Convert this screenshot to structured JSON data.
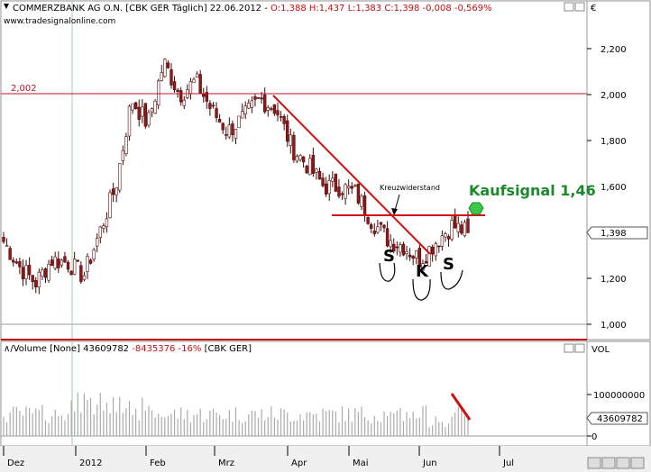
{
  "header": {
    "title_prefix": "COMMERZBANK AG O.N. [CBK GER  Täglich] 22.06.2012 - ",
    "ohlc": "O:1,388 H:1,437 L:1,383 C:1,398 -0,008 -0,569%",
    "source": "www.tradesignalonline.com",
    "currency": "€"
  },
  "volume_header": {
    "prefix": "Volume [None] 43609782 ",
    "change": "-8435376 -16%",
    "suffix": " [CBK GER]",
    "axis_label": "VOL"
  },
  "annotations": {
    "level_label": "2,002",
    "kreuzwiderstand": "Kreuzwiderstand",
    "kaufsignal": "Kaufsignal 1,46",
    "s_left": "S",
    "k": "K",
    "s_right": "S",
    "last_price": "1,398",
    "last_volume": "43609782"
  },
  "colors": {
    "background": "#ffffff",
    "candle": "#8b1a1a",
    "trendline": "#d01010",
    "level_line": "#c0102a",
    "kaufsignal_text": "#1a8a2a",
    "kaufsignal_dot": "#3cc84a",
    "header_red": "#c41010",
    "volume_bar": "#aaaaaa"
  },
  "chart_data": {
    "type": "candlestick",
    "ylim": [
      0.93,
      2.38
    ],
    "price_ticks": [
      "1,000",
      "1,200",
      "1,400",
      "1,600",
      "1,800",
      "2,000",
      "2,200"
    ],
    "volume_ticks": [
      "0",
      "100000000"
    ],
    "volume_ylim": [
      -15000000,
      200000000
    ],
    "x_labels": [
      "Dez",
      "2012",
      "Feb",
      "Mrz",
      "Apr",
      "Mai",
      "Jun",
      "Jul"
    ],
    "horizontal_level": 2.002,
    "resistance_level": 1.47,
    "downtrend_line": {
      "from": [
        "2012-03-29",
        2.0
      ],
      "to": [
        "2012-06-04",
        1.31
      ]
    },
    "last_close": 1.398,
    "last_volume": 43609782,
    "ohlc_sample": [
      {
        "date": "2011-12-01",
        "close": 1.36
      },
      {
        "date": "2011-12-08",
        "close": 1.25
      },
      {
        "date": "2011-12-15",
        "close": 1.18
      },
      {
        "date": "2011-12-22",
        "close": 1.28
      },
      {
        "date": "2011-12-30",
        "close": 1.27
      },
      {
        "date": "2012-01-06",
        "close": 1.21
      },
      {
        "date": "2012-01-13",
        "close": 1.4
      },
      {
        "date": "2012-01-20",
        "close": 1.6
      },
      {
        "date": "2012-01-27",
        "close": 1.98
      },
      {
        "date": "2012-02-03",
        "close": 1.87
      },
      {
        "date": "2012-02-10",
        "close": 2.14
      },
      {
        "date": "2012-02-17",
        "close": 2.0
      },
      {
        "date": "2012-02-24",
        "close": 2.06
      },
      {
        "date": "2012-03-02",
        "close": 1.93
      },
      {
        "date": "2012-03-09",
        "close": 1.84
      },
      {
        "date": "2012-03-16",
        "close": 1.9
      },
      {
        "date": "2012-03-23",
        "close": 1.98
      },
      {
        "date": "2012-03-30",
        "close": 1.94
      },
      {
        "date": "2012-04-06",
        "close": 1.77
      },
      {
        "date": "2012-04-13",
        "close": 1.69
      },
      {
        "date": "2012-04-20",
        "close": 1.6
      },
      {
        "date": "2012-04-27",
        "close": 1.6
      },
      {
        "date": "2012-05-04",
        "close": 1.57
      },
      {
        "date": "2012-05-11",
        "close": 1.45
      },
      {
        "date": "2012-05-18",
        "close": 1.37
      },
      {
        "date": "2012-05-25",
        "close": 1.34
      },
      {
        "date": "2012-06-01",
        "close": 1.28
      },
      {
        "date": "2012-06-08",
        "close": 1.36
      },
      {
        "date": "2012-06-15",
        "close": 1.43
      },
      {
        "date": "2012-06-22",
        "close": 1.398
      }
    ]
  }
}
